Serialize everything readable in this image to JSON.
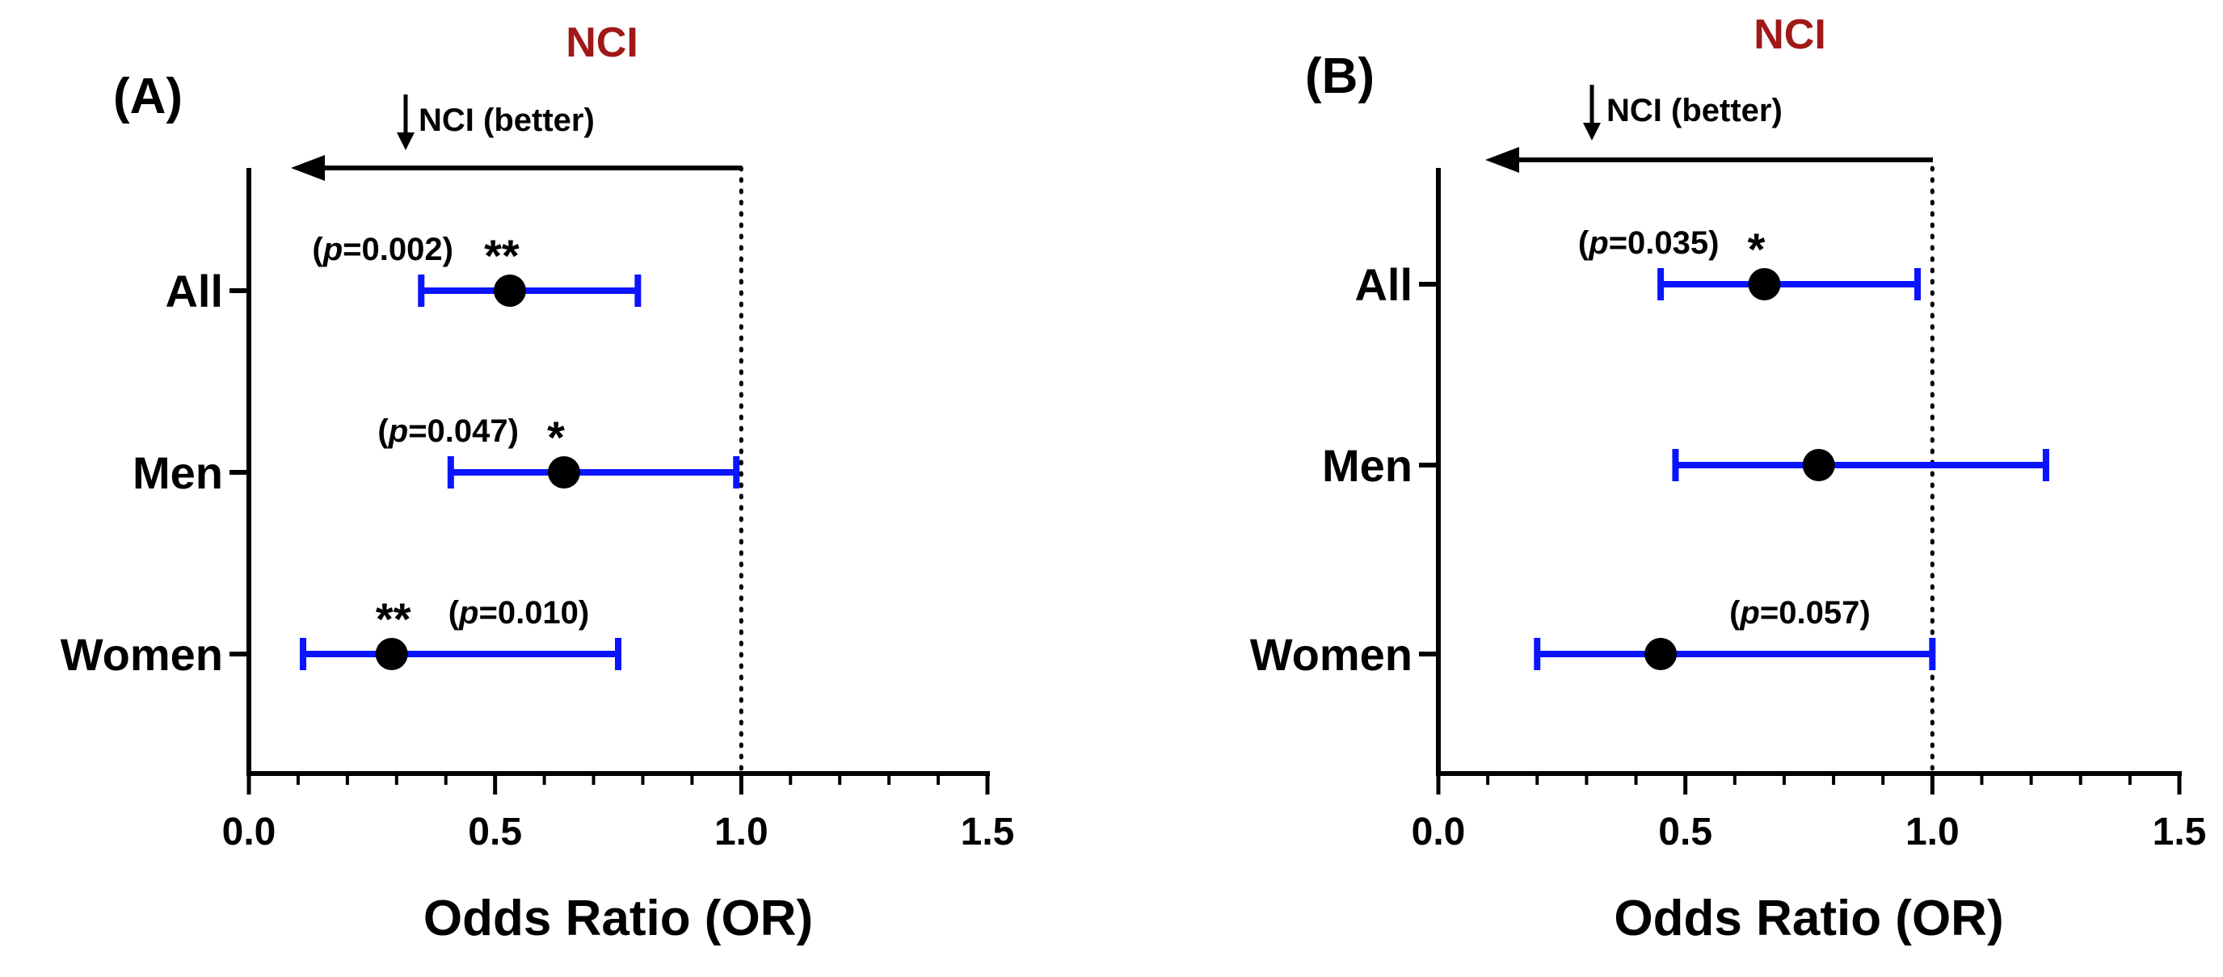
{
  "chart_data": [
    {
      "type": "forest",
      "panel_label": "(A)",
      "title": "NCI",
      "direction_label": "NCI (better)",
      "xlabel": "Odds Ratio (OR)",
      "xlim": [
        0.0,
        1.5
      ],
      "xticks": [
        "0.0",
        "0.5",
        "1.0",
        "1.5"
      ],
      "reference_line": 1.0,
      "rows": [
        {
          "label": "All",
          "or": 0.53,
          "ci_low": 0.35,
          "ci_high": 0.79,
          "p_text": "=0.002)",
          "stars": "**",
          "annot_position": "left"
        },
        {
          "label": "Men",
          "or": 0.64,
          "ci_low": 0.41,
          "ci_high": 0.99,
          "p_text": "=0.047)",
          "stars": "*",
          "annot_position": "left"
        },
        {
          "label": "Women",
          "or": 0.29,
          "ci_low": 0.11,
          "ci_high": 0.75,
          "p_text": "=0.010)",
          "stars": "**",
          "annot_position": "right"
        }
      ]
    },
    {
      "type": "forest",
      "panel_label": "(B)",
      "title": "NCI",
      "direction_label": "NCI (better)",
      "xlabel": "Odds Ratio (OR)",
      "xlim": [
        0.0,
        1.5
      ],
      "xticks": [
        "0.0",
        "0.5",
        "1.0",
        "1.5"
      ],
      "reference_line": 1.0,
      "rows": [
        {
          "label": "All",
          "or": 0.66,
          "ci_low": 0.45,
          "ci_high": 0.97,
          "p_text": "=0.035)",
          "stars": "*",
          "annot_position": "left"
        },
        {
          "label": "Men",
          "or": 0.77,
          "ci_low": 0.48,
          "ci_high": 1.23,
          "p_text": "",
          "stars": "",
          "annot_position": "none"
        },
        {
          "label": "Women",
          "or": 0.45,
          "ci_low": 0.2,
          "ci_high": 1.0,
          "p_text": "=0.057)",
          "stars": "",
          "annot_position": "above"
        }
      ]
    }
  ],
  "p_prefix_paren": "(",
  "p_symbol": "p",
  "colors": {
    "ci_line": "#0a14ff",
    "point": "#000000",
    "axis": "#000000",
    "title": "#a01818"
  }
}
